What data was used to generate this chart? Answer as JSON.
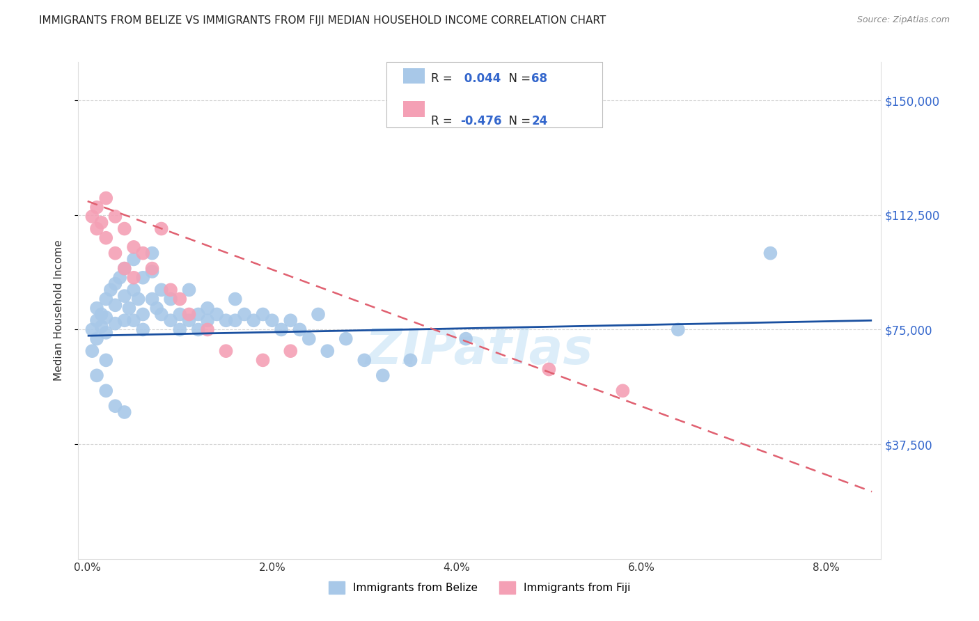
{
  "title": "IMMIGRANTS FROM BELIZE VS IMMIGRANTS FROM FIJI MEDIAN HOUSEHOLD INCOME CORRELATION CHART",
  "source": "Source: ZipAtlas.com",
  "ylabel": "Median Household Income",
  "xlabel_ticks": [
    "0.0%",
    "2.0%",
    "4.0%",
    "6.0%",
    "8.0%"
  ],
  "xlabel_vals": [
    0.0,
    0.02,
    0.04,
    0.06,
    0.08
  ],
  "ytick_labels": [
    "$37,500",
    "$75,000",
    "$112,500",
    "$150,000"
  ],
  "ytick_vals": [
    37500,
    75000,
    112500,
    150000
  ],
  "ylim": [
    0,
    162500
  ],
  "xlim": [
    -0.001,
    0.086
  ],
  "belize_R": 0.044,
  "belize_N": 68,
  "fiji_R": -0.476,
  "fiji_N": 24,
  "belize_color": "#a8c8e8",
  "fiji_color": "#f4a0b5",
  "belize_line_color": "#1a50a0",
  "fiji_line_color": "#e06070",
  "legend_label_belize": "Immigrants from Belize",
  "legend_label_fiji": "Immigrants from Fiji",
  "background_color": "#ffffff",
  "grid_color": "#cccccc",
  "title_fontsize": 11,
  "axis_label_color": "#3366cc",
  "watermark": "ZIPatlas",
  "belize_scatter_x": [
    0.0005,
    0.001,
    0.001,
    0.0015,
    0.0015,
    0.002,
    0.002,
    0.002,
    0.0025,
    0.003,
    0.003,
    0.003,
    0.0035,
    0.004,
    0.004,
    0.004,
    0.0045,
    0.005,
    0.005,
    0.005,
    0.0055,
    0.006,
    0.006,
    0.006,
    0.007,
    0.007,
    0.007,
    0.0075,
    0.008,
    0.008,
    0.009,
    0.009,
    0.01,
    0.01,
    0.011,
    0.011,
    0.012,
    0.012,
    0.013,
    0.013,
    0.014,
    0.015,
    0.016,
    0.016,
    0.017,
    0.018,
    0.019,
    0.02,
    0.021,
    0.022,
    0.023,
    0.024,
    0.025,
    0.026,
    0.028,
    0.03,
    0.032,
    0.035,
    0.0005,
    0.001,
    0.001,
    0.002,
    0.002,
    0.003,
    0.004,
    0.041,
    0.064,
    0.074
  ],
  "belize_scatter_y": [
    75000,
    78000,
    82000,
    80000,
    76000,
    85000,
    79000,
    74000,
    88000,
    90000,
    83000,
    77000,
    92000,
    95000,
    86000,
    78000,
    82000,
    98000,
    88000,
    78000,
    85000,
    92000,
    80000,
    75000,
    100000,
    94000,
    85000,
    82000,
    88000,
    80000,
    85000,
    78000,
    80000,
    75000,
    88000,
    78000,
    80000,
    75000,
    82000,
    78000,
    80000,
    78000,
    85000,
    78000,
    80000,
    78000,
    80000,
    78000,
    75000,
    78000,
    75000,
    72000,
    80000,
    68000,
    72000,
    65000,
    60000,
    65000,
    68000,
    72000,
    60000,
    65000,
    55000,
    50000,
    48000,
    72000,
    75000,
    100000
  ],
  "fiji_scatter_x": [
    0.0005,
    0.001,
    0.001,
    0.0015,
    0.002,
    0.002,
    0.003,
    0.003,
    0.004,
    0.004,
    0.005,
    0.005,
    0.006,
    0.007,
    0.008,
    0.009,
    0.01,
    0.011,
    0.013,
    0.015,
    0.019,
    0.022,
    0.05,
    0.058
  ],
  "fiji_scatter_y": [
    112000,
    115000,
    108000,
    110000,
    118000,
    105000,
    112000,
    100000,
    108000,
    95000,
    102000,
    92000,
    100000,
    95000,
    108000,
    88000,
    85000,
    80000,
    75000,
    68000,
    65000,
    68000,
    62000,
    55000
  ],
  "belize_trendline_x": [
    0.0,
    0.085
  ],
  "belize_trendline_y": [
    73000,
    78000
  ],
  "fiji_trendline_x": [
    0.0,
    0.085
  ],
  "fiji_trendline_y": [
    117000,
    22000
  ]
}
